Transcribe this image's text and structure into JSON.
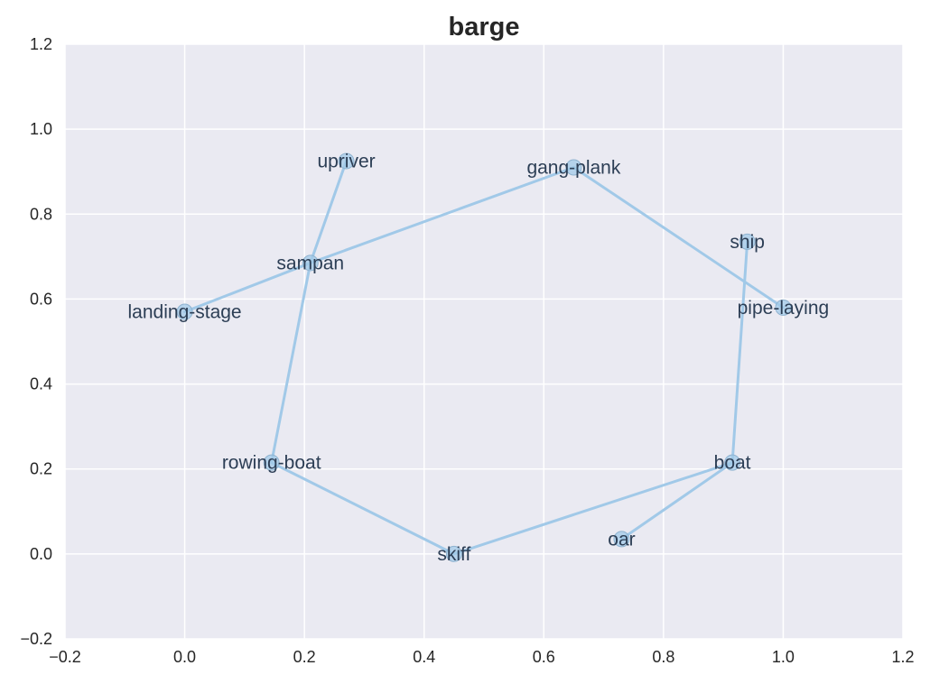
{
  "chart_data": {
    "type": "scatter",
    "title": "barge",
    "xlabel": "",
    "ylabel": "",
    "xlim": [
      -0.2,
      1.2
    ],
    "ylim": [
      -0.2,
      1.2
    ],
    "xticks": [
      "−0.2",
      "0.0",
      "0.2",
      "0.4",
      "0.6",
      "0.8",
      "1.0",
      "1.2"
    ],
    "yticks": [
      "−0.2",
      "0.0",
      "0.2",
      "0.4",
      "0.6",
      "0.8",
      "1.0",
      "1.2"
    ],
    "grid": true,
    "points": [
      {
        "label": "upriver",
        "x": 0.27,
        "y": 0.925
      },
      {
        "label": "gang-plank",
        "x": 0.65,
        "y": 0.91
      },
      {
        "label": "ship",
        "x": 0.94,
        "y": 0.735
      },
      {
        "label": "sampan",
        "x": 0.21,
        "y": 0.685
      },
      {
        "label": "pipe-laying",
        "x": 1.0,
        "y": 0.58
      },
      {
        "label": "landing-stage",
        "x": 0.0,
        "y": 0.57
      },
      {
        "label": "rowing-boat",
        "x": 0.145,
        "y": 0.215
      },
      {
        "label": "boat",
        "x": 0.915,
        "y": 0.215
      },
      {
        "label": "oar",
        "x": 0.73,
        "y": 0.035
      },
      {
        "label": "skiff",
        "x": 0.45,
        "y": 0.0
      }
    ],
    "edges": [
      [
        "landing-stage",
        "sampan"
      ],
      [
        "sampan",
        "gang-plank"
      ],
      [
        "gang-plank",
        "pipe-laying"
      ],
      [
        "upriver",
        "sampan"
      ],
      [
        "sampan",
        "rowing-boat"
      ],
      [
        "rowing-boat",
        "skiff"
      ],
      [
        "skiff",
        "boat"
      ],
      [
        "boat",
        "oar"
      ],
      [
        "boat",
        "ship"
      ]
    ],
    "colors": {
      "background": "#eaeaf2",
      "grid": "#ffffff",
      "line": "#a1c9e8",
      "marker": "#a1c9e8",
      "label": "#2c3e55"
    }
  }
}
